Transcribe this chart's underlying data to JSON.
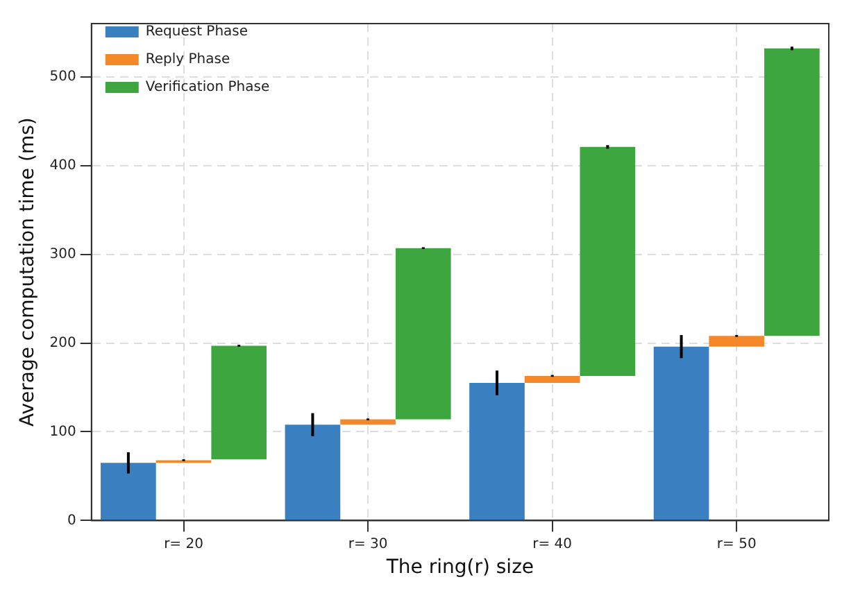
{
  "chart_data": {
    "type": "bar",
    "xlabel": "The ring(r) size",
    "ylabel": "Average computation time (ms)",
    "categories": [
      "r= 20",
      "r= 30",
      "r= 40",
      "r= 50"
    ],
    "series": [
      {
        "name": "Request Phase",
        "color": "#3a80c0",
        "values": [
          65,
          108,
          155,
          196
        ],
        "errors": [
          12,
          13,
          14,
          13
        ]
      },
      {
        "name": "Reply Phase",
        "color": "#f5892a",
        "values": [
          3,
          6,
          8,
          12
        ],
        "base": [
          65,
          108,
          155,
          196
        ],
        "errors": [
          1,
          1,
          1,
          1
        ]
      },
      {
        "name": "Verification Phase",
        "color": "#3ea63e",
        "values": [
          128,
          193,
          258,
          324
        ],
        "base": [
          69,
          114,
          163,
          208
        ],
        "errors": [
          1,
          1,
          2,
          2
        ]
      }
    ],
    "ylim": [
      0,
      560
    ],
    "yticks": [
      0,
      100,
      200,
      300,
      400,
      500
    ],
    "grid": true,
    "legend": "top left"
  }
}
